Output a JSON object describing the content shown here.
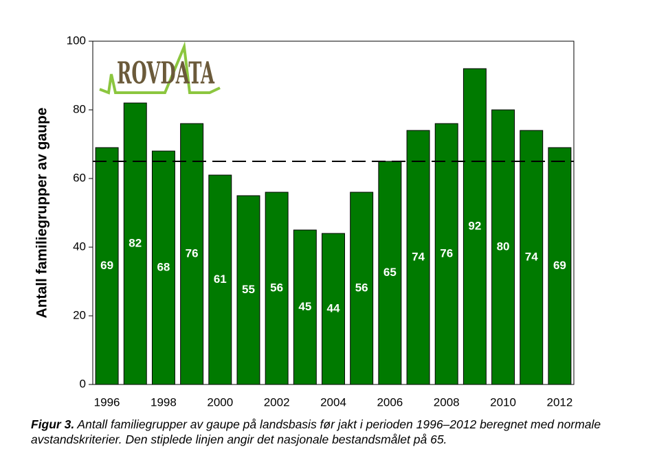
{
  "chart_data": {
    "type": "bar",
    "ylabel": "Antall familiegrupper av gaupe",
    "categories": [
      "1996",
      null,
      "1998",
      null,
      "2000",
      null,
      "2002",
      null,
      "2004",
      null,
      "2006",
      null,
      "2008",
      null,
      "2010",
      null,
      "2012"
    ],
    "values": [
      69,
      82,
      68,
      76,
      61,
      55,
      56,
      45,
      44,
      56,
      65,
      74,
      76,
      92,
      80,
      74,
      69
    ],
    "color": "#007a00",
    "ylim": [
      0,
      100
    ],
    "yticks": [
      0,
      20,
      40,
      60,
      80,
      100
    ],
    "reference_line": 65,
    "logo_text": "ROVDATA",
    "caption_label": "Figur 3.",
    "caption": "Antall familiegrupper av gaupe på landsbasis før jakt i perioden 1996–2012 beregnet med normale avstandskriterier. Den stiplede linjen angir det nasjonale bestandsmålet på 65."
  }
}
